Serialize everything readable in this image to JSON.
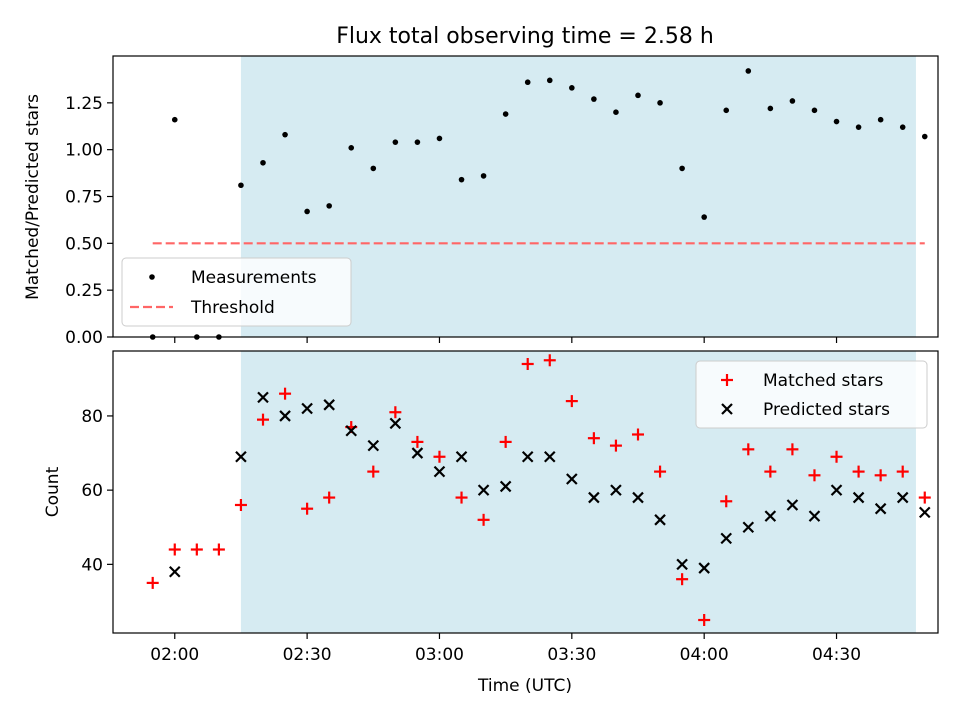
{
  "figure": {
    "title": "Flux total observing time = 2.58 h",
    "xlabel": "Time (UTC)",
    "x_tick_labels": [
      "02:00",
      "02:30",
      "03:00",
      "03:30",
      "04:00",
      "04:30"
    ]
  },
  "chart_data": [
    {
      "type": "scatter",
      "title": "Flux total observing time = 2.58 h",
      "xlabel": "",
      "ylabel": "Matched/Predicted stars",
      "x_unit": "time (UTC)",
      "xlim": [
        "01:46",
        "04:53"
      ],
      "ylim": [
        0,
        1.5
      ],
      "y_ticks": [
        "0.00",
        "0.25",
        "0.50",
        "0.75",
        "1.00",
        "1.25"
      ],
      "shaded_region": {
        "x_start": "02:15",
        "x_end": "04:48",
        "color": "#add8e6"
      },
      "series": [
        {
          "name": "Measurements",
          "marker": "dot",
          "color": "#000000",
          "points": [
            [
              "01:55",
              0.0
            ],
            [
              "02:00",
              1.16
            ],
            [
              "02:05",
              0.0
            ],
            [
              "02:10",
              0.0
            ],
            [
              "02:15",
              0.81
            ],
            [
              "02:20",
              0.93
            ],
            [
              "02:25",
              1.08
            ],
            [
              "02:30",
              0.67
            ],
            [
              "02:35",
              0.7
            ],
            [
              "02:40",
              1.01
            ],
            [
              "02:45",
              0.9
            ],
            [
              "02:50",
              1.04
            ],
            [
              "02:55",
              1.04
            ],
            [
              "03:00",
              1.06
            ],
            [
              "03:05",
              0.84
            ],
            [
              "03:10",
              0.86
            ],
            [
              "03:15",
              1.19
            ],
            [
              "03:20",
              1.36
            ],
            [
              "03:25",
              1.37
            ],
            [
              "03:30",
              1.33
            ],
            [
              "03:35",
              1.27
            ],
            [
              "03:40",
              1.2
            ],
            [
              "03:45",
              1.29
            ],
            [
              "03:50",
              1.25
            ],
            [
              "03:55",
              0.9
            ],
            [
              "04:00",
              0.64
            ],
            [
              "04:05",
              1.21
            ],
            [
              "04:10",
              1.42
            ],
            [
              "04:15",
              1.22
            ],
            [
              "04:20",
              1.26
            ],
            [
              "04:25",
              1.21
            ],
            [
              "04:30",
              1.15
            ],
            [
              "04:35",
              1.12
            ],
            [
              "04:40",
              1.16
            ],
            [
              "04:45",
              1.12
            ],
            [
              "04:50",
              1.07
            ]
          ]
        },
        {
          "name": "Threshold",
          "marker": "dashed-line",
          "color": "#ff6666",
          "points": [
            [
              "01:55",
              0.5
            ],
            [
              "04:50",
              0.5
            ]
          ]
        }
      ],
      "legend_position": "lower-left"
    },
    {
      "type": "scatter",
      "xlabel": "Time (UTC)",
      "ylabel": "Count",
      "xlim": [
        "01:46",
        "04:53"
      ],
      "ylim": [
        21.5,
        97.5
      ],
      "y_ticks": [
        "40",
        "60",
        "80"
      ],
      "shaded_region": {
        "x_start": "02:15",
        "x_end": "04:48",
        "color": "#add8e6"
      },
      "series": [
        {
          "name": "Matched stars",
          "marker": "plus",
          "color": "#ff0000",
          "points": [
            [
              "01:55",
              35
            ],
            [
              "02:00",
              44
            ],
            [
              "02:05",
              44
            ],
            [
              "02:10",
              44
            ],
            [
              "02:15",
              56
            ],
            [
              "02:20",
              79
            ],
            [
              "02:25",
              86
            ],
            [
              "02:30",
              55
            ],
            [
              "02:35",
              58
            ],
            [
              "02:40",
              77
            ],
            [
              "02:45",
              65
            ],
            [
              "02:50",
              81
            ],
            [
              "02:55",
              73
            ],
            [
              "03:00",
              69
            ],
            [
              "03:05",
              58
            ],
            [
              "03:10",
              52
            ],
            [
              "03:15",
              73
            ],
            [
              "03:20",
              94
            ],
            [
              "03:25",
              95
            ],
            [
              "03:30",
              84
            ],
            [
              "03:35",
              74
            ],
            [
              "03:40",
              72
            ],
            [
              "03:45",
              75
            ],
            [
              "03:50",
              65
            ],
            [
              "03:55",
              36
            ],
            [
              "04:00",
              25
            ],
            [
              "04:05",
              57
            ],
            [
              "04:10",
              71
            ],
            [
              "04:15",
              65
            ],
            [
              "04:20",
              71
            ],
            [
              "04:25",
              64
            ],
            [
              "04:30",
              69
            ],
            [
              "04:35",
              65
            ],
            [
              "04:40",
              64
            ],
            [
              "04:45",
              65
            ],
            [
              "04:50",
              58
            ]
          ]
        },
        {
          "name": "Predicted stars",
          "marker": "x",
          "color": "#000000",
          "points": [
            [
              "02:00",
              38
            ],
            [
              "02:15",
              69
            ],
            [
              "02:20",
              85
            ],
            [
              "02:25",
              80
            ],
            [
              "02:30",
              82
            ],
            [
              "02:35",
              83
            ],
            [
              "02:40",
              76
            ],
            [
              "02:45",
              72
            ],
            [
              "02:50",
              78
            ],
            [
              "02:55",
              70
            ],
            [
              "03:00",
              65
            ],
            [
              "03:05",
              69
            ],
            [
              "03:10",
              60
            ],
            [
              "03:15",
              61
            ],
            [
              "03:20",
              69
            ],
            [
              "03:25",
              69
            ],
            [
              "03:30",
              63
            ],
            [
              "03:35",
              58
            ],
            [
              "03:40",
              60
            ],
            [
              "03:45",
              58
            ],
            [
              "03:50",
              52
            ],
            [
              "03:55",
              40
            ],
            [
              "04:00",
              39
            ],
            [
              "04:05",
              47
            ],
            [
              "04:10",
              50
            ],
            [
              "04:15",
              53
            ],
            [
              "04:20",
              56
            ],
            [
              "04:25",
              53
            ],
            [
              "04:30",
              60
            ],
            [
              "04:35",
              58
            ],
            [
              "04:40",
              55
            ],
            [
              "04:45",
              58
            ],
            [
              "04:50",
              54
            ]
          ]
        }
      ],
      "legend_position": "upper-right"
    }
  ]
}
